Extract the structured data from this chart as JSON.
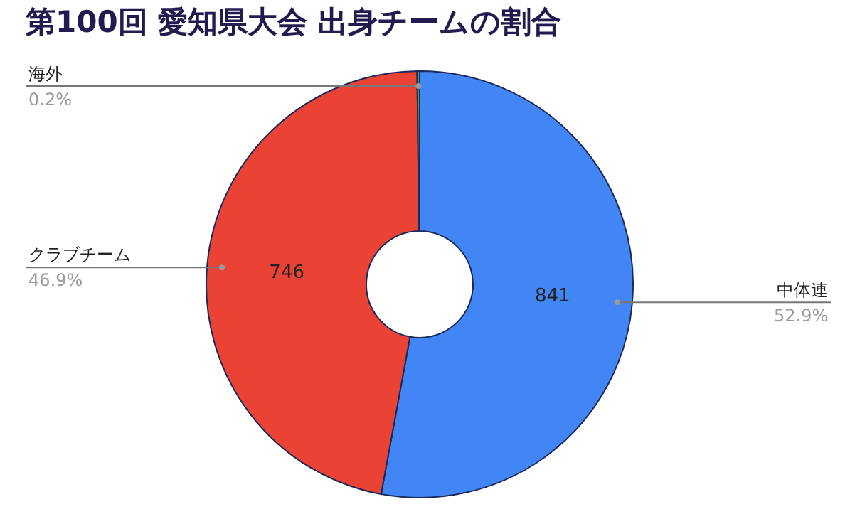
{
  "chart_data": {
    "type": "donut",
    "title": "第100回 愛知県大会 出身チームの割合",
    "categories": [
      "中体連",
      "クラブチーム",
      "海外"
    ],
    "values": [
      841,
      746,
      3
    ],
    "colors": [
      "#4285f4",
      "#ea4335",
      "#34a853"
    ],
    "value_labels": [
      "841",
      "746",
      null
    ],
    "annotations": [
      "52.9%",
      "46.9%",
      "0.2%"
    ],
    "legend": false
  }
}
